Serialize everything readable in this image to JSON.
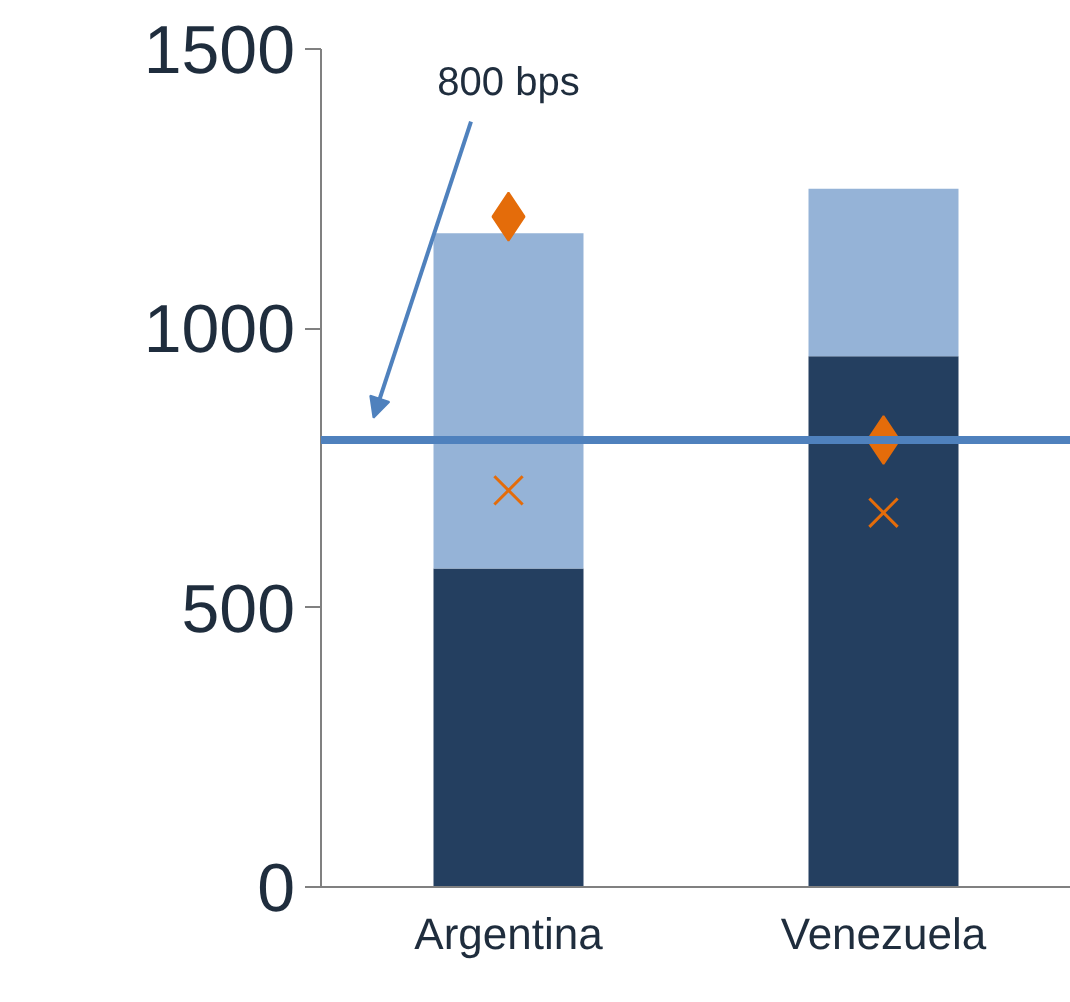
{
  "chart_data": {
    "type": "bar",
    "stacked": true,
    "categories": [
      "Argentina",
      "Venezuela"
    ],
    "series": [
      {
        "color": "#243f60",
        "values": [
          570,
          950
        ]
      },
      {
        "color": "#95b3d7",
        "values": [
          600,
          300
        ]
      },
      {
        "type": "scatter",
        "marker": "diamond",
        "color": "#e46c0a",
        "x": [
          "Argentina",
          "Venezuela"
        ],
        "values": [
          1200,
          800
        ]
      },
      {
        "type": "scatter",
        "marker": "cross",
        "color": "#e46c0a",
        "x": [
          "Argentina",
          "Venezuela"
        ],
        "values": [
          710,
          670
        ]
      }
    ],
    "ylim": [
      0,
      1500
    ],
    "yticks": [
      0,
      500,
      1000,
      1500
    ],
    "grid": false,
    "annotations": [
      "800 bps"
    ],
    "ref_lines": [
      {
        "axis": "y",
        "value": 800,
        "color": "#4f81bd"
      }
    ]
  }
}
